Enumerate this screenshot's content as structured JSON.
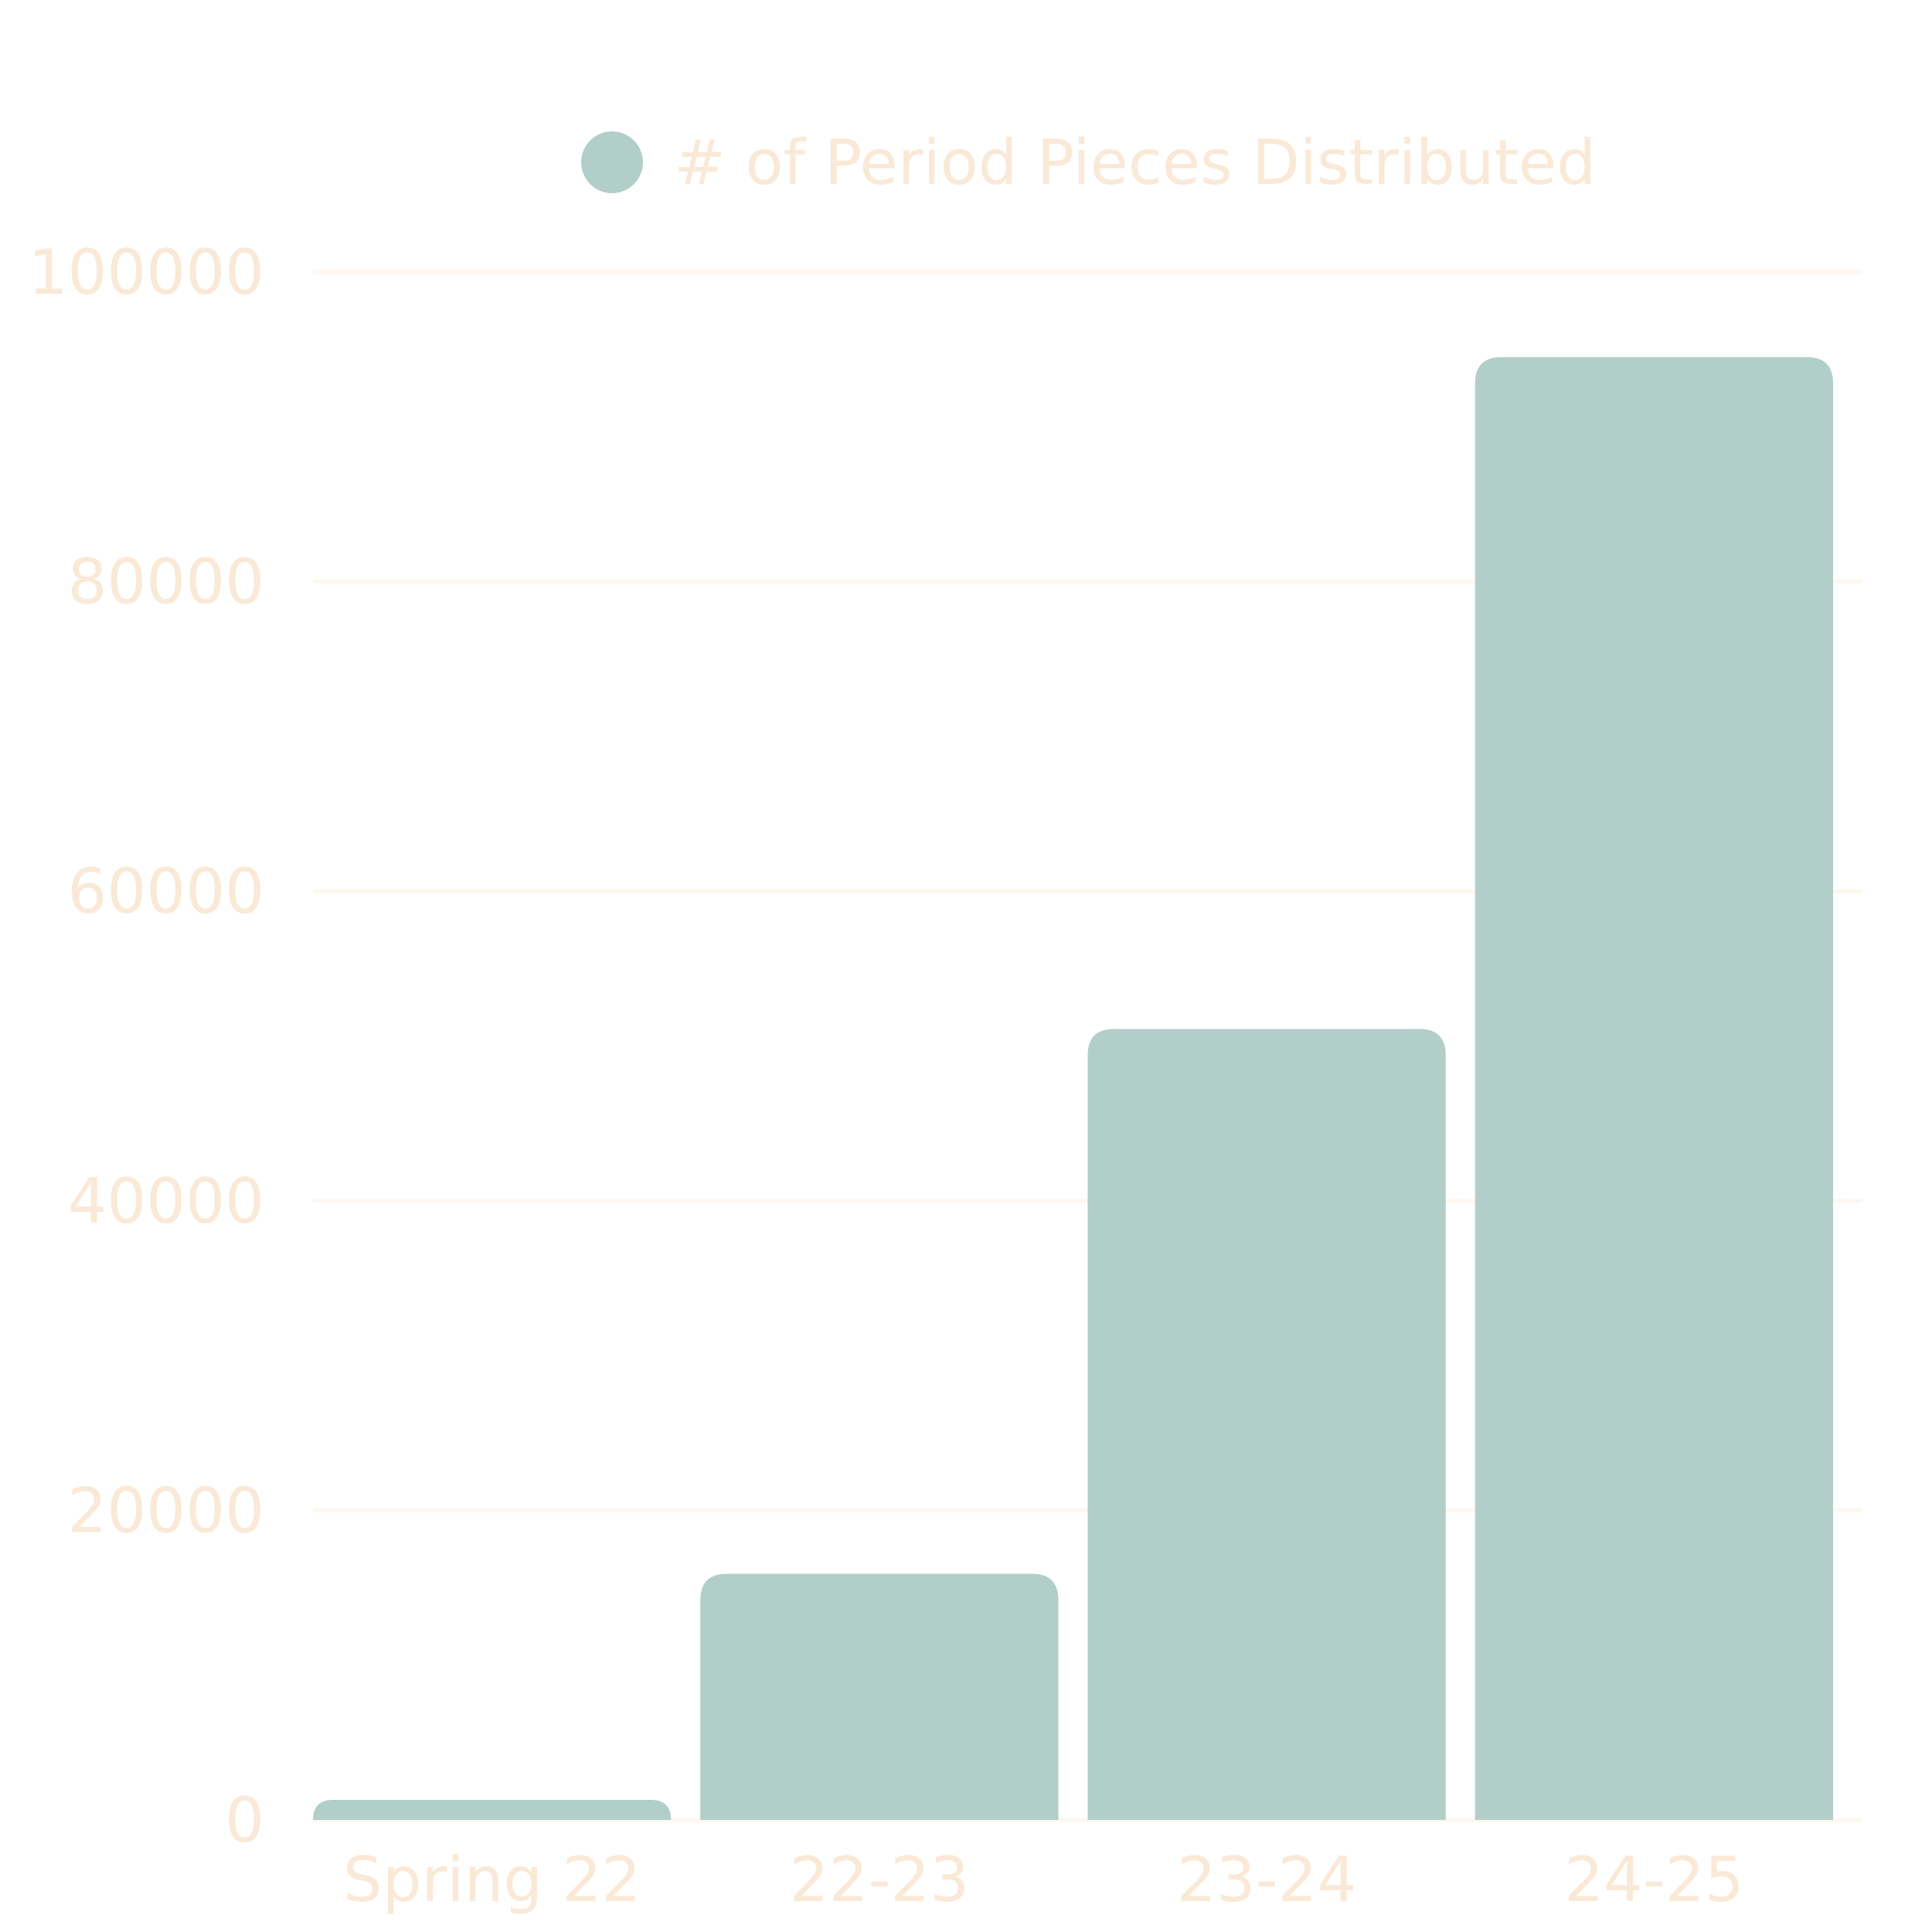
{
  "chart_data": {
    "type": "bar",
    "legend": {
      "label": "# of Period Pieces Distributed",
      "placement": "top-center"
    },
    "categories": [
      "Spring 22",
      "22-23",
      "23-24",
      "24-25"
    ],
    "series": [
      {
        "name": "# of Period Pieces Distributed",
        "values": [
          1300,
          15900,
          51100,
          94500
        ]
      }
    ],
    "ylim": [
      0,
      100000
    ],
    "yticks": [
      "0",
      "20000",
      "40000",
      "60000",
      "80000",
      "100000"
    ],
    "grid": true
  },
  "colors": {
    "bar": "#b2cec8",
    "text": "#f9e9d6",
    "grid": "#fdf7ef",
    "background": "#ffffff"
  }
}
